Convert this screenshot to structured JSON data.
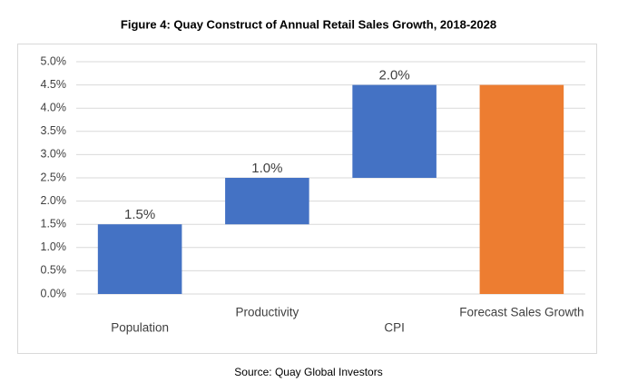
{
  "chart_data": {
    "type": "waterfall",
    "title": "Figure 4: Quay Construct of Annual Retail Sales Growth, 2018-2028",
    "source": "Source: Quay Global Investors",
    "categories": [
      "Population",
      "Productivity",
      "CPI",
      "Forecast Sales Growth"
    ],
    "values": [
      1.5,
      1.0,
      2.0,
      4.5
    ],
    "value_labels": [
      "1.5%",
      "1.0%",
      "2.0%",
      null
    ],
    "totals": [
      false,
      false,
      false,
      true
    ],
    "colors": [
      "#4472c4",
      "#4472c4",
      "#4472c4",
      "#ed7d31"
    ],
    "ylim": [
      0,
      5
    ],
    "yticks": [
      {
        "value": 0,
        "label": "0.0%"
      },
      {
        "value": 0.5,
        "label": "0.5%"
      },
      {
        "value": 1,
        "label": "1.0%"
      },
      {
        "value": 1.5,
        "label": "1.5%"
      },
      {
        "value": 2,
        "label": "2.0%"
      },
      {
        "value": 2.5,
        "label": "2.5%"
      },
      {
        "value": 3,
        "label": "3.0%"
      },
      {
        "value": 3.5,
        "label": "3.5%"
      },
      {
        "value": 4,
        "label": "4.0%"
      },
      {
        "value": 4.5,
        "label": "4.5%"
      },
      {
        "value": 5,
        "label": "5.0%"
      }
    ],
    "grid": true
  }
}
